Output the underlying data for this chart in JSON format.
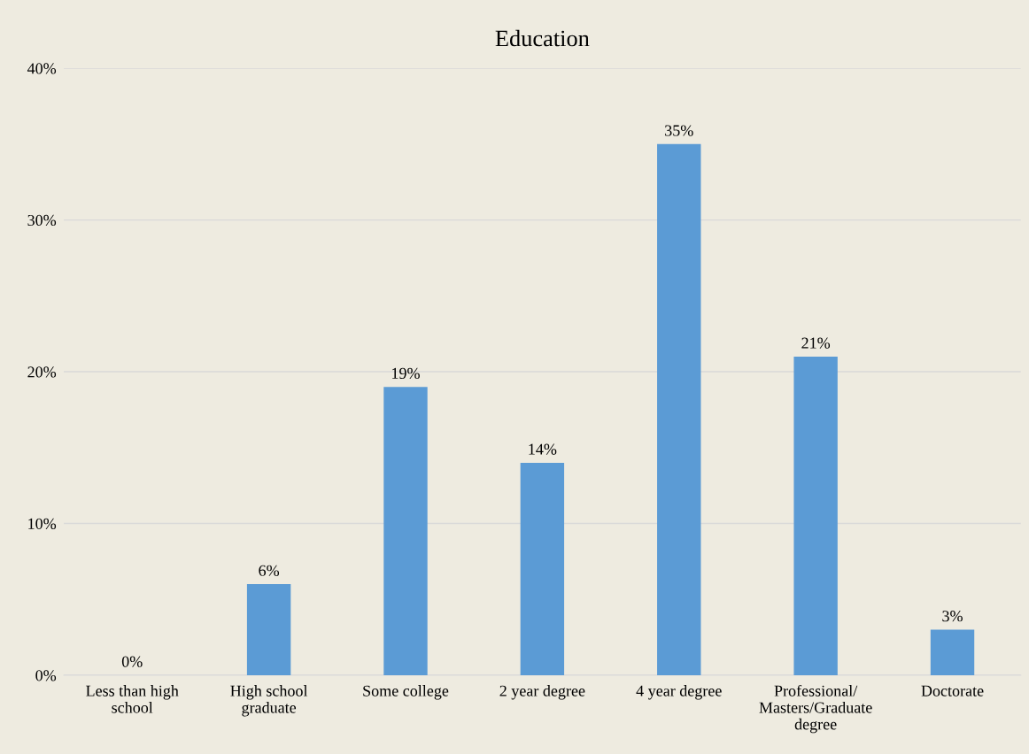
{
  "chart_data": {
    "type": "bar",
    "title": "Education",
    "categories": [
      "Less than high\nschool",
      "High school\ngraduate",
      "Some college",
      "2 year degree",
      "4 year degree",
      "Professional/\nMasters/Graduate\ndegree",
      "Doctorate"
    ],
    "values": [
      0,
      6,
      19,
      14,
      35,
      21,
      3
    ],
    "value_labels": [
      "0%",
      "6%",
      "19%",
      "14%",
      "35%",
      "21%",
      "3%"
    ],
    "color": "#5b9bd5",
    "ylim": [
      0,
      40
    ],
    "yticks": [
      {
        "value": 0,
        "label": "0%"
      },
      {
        "value": 10,
        "label": "10%"
      },
      {
        "value": 20,
        "label": "20%"
      },
      {
        "value": 30,
        "label": "30%"
      },
      {
        "value": 40,
        "label": "40%"
      }
    ],
    "grid": "y",
    "legend": false
  }
}
